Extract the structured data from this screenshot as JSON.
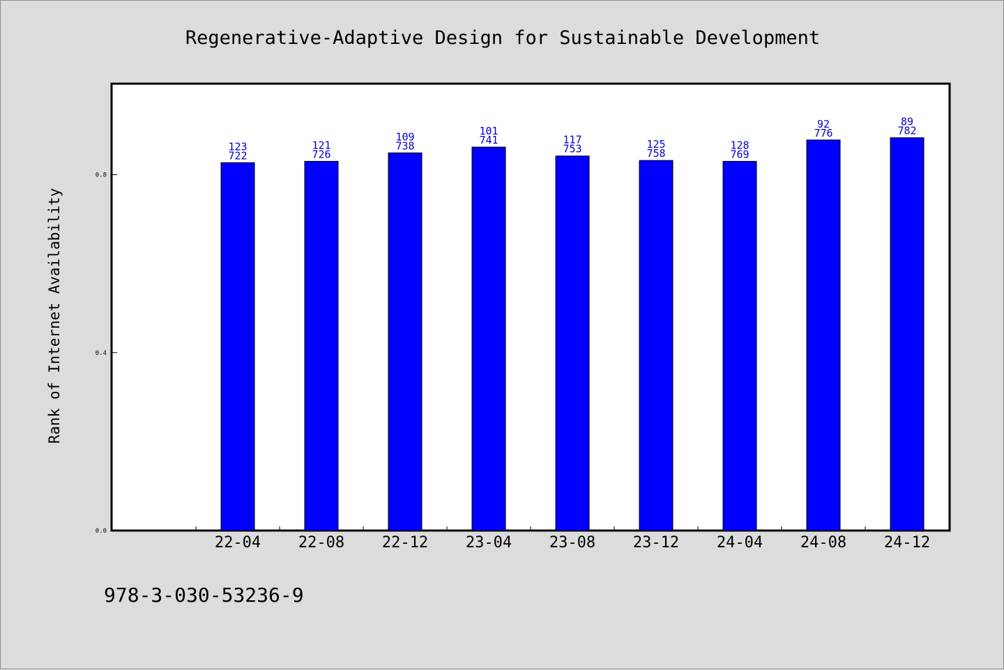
{
  "chart_data": {
    "type": "bar",
    "title": "Regenerative-Adaptive Design for Sustainable Development",
    "ylabel": "Rank of Internet Availability",
    "xlabel": "",
    "categories": [
      "22-04",
      "22-08",
      "22-12",
      "23-04",
      "23-08",
      "23-12",
      "24-04",
      "24-08",
      "24-12"
    ],
    "values": [
      0.827,
      0.83,
      0.849,
      0.862,
      0.842,
      0.832,
      0.83,
      0.878,
      0.883
    ],
    "value_labels_top": [
      "123",
      "121",
      "109",
      "101",
      "117",
      "125",
      "128",
      "92",
      "89"
    ],
    "value_labels_bottom": [
      "722",
      "726",
      "738",
      "741",
      "753",
      "758",
      "769",
      "776",
      "782"
    ],
    "yticks": [
      "0.0",
      "0.4",
      "0.8"
    ],
    "ytick_values": [
      0.0,
      0.4,
      0.8
    ],
    "ylim": [
      0.0,
      1.003
    ],
    "grid": false,
    "bar_color": "#0000ff",
    "label_color": "#0000cc"
  },
  "footer": {
    "isbn": "978-3-030-53236-9"
  }
}
